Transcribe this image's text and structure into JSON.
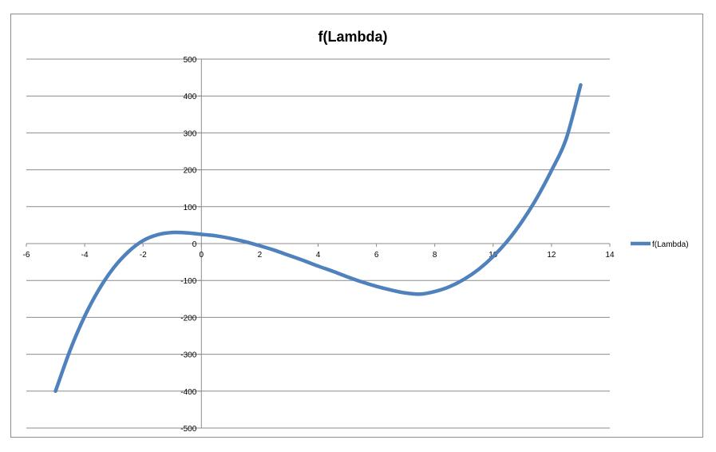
{
  "chart_data": {
    "type": "line",
    "title": "f(Lambda)",
    "xlabel": "",
    "ylabel": "",
    "xlim": [
      -6,
      14
    ],
    "ylim": [
      -500,
      500
    ],
    "x_ticks": [
      -6,
      -4,
      -2,
      0,
      2,
      4,
      6,
      8,
      10,
      12,
      14
    ],
    "y_ticks": [
      500,
      400,
      300,
      200,
      100,
      0,
      -100,
      -200,
      -300,
      -400,
      -500
    ],
    "grid": "horizontal",
    "legend_position": "right",
    "series": [
      {
        "name": "f(Lambda)",
        "color": "#4f81bd",
        "x": [
          -5,
          -4.5,
          -4,
          -3.5,
          -3,
          -2.5,
          -2,
          -1.5,
          -1,
          -0.5,
          0,
          0.5,
          1,
          1.5,
          2,
          2.5,
          3,
          3.5,
          4,
          4.5,
          5,
          5.5,
          6,
          6.5,
          7,
          7.5,
          8,
          8.5,
          9,
          9.5,
          10,
          10.5,
          11,
          11.5,
          12,
          12.5,
          13
        ],
        "y": [
          -400,
          -289,
          -197,
          -123,
          -65,
          -22,
          8,
          24,
          30,
          29,
          25,
          21,
          14,
          5,
          -6,
          -18,
          -32,
          -46,
          -61,
          -75,
          -90,
          -104,
          -116,
          -126,
          -134,
          -137,
          -130,
          -117,
          -97,
          -70,
          -35,
          8,
          61,
          124,
          198,
          283,
          430
        ]
      }
    ]
  }
}
